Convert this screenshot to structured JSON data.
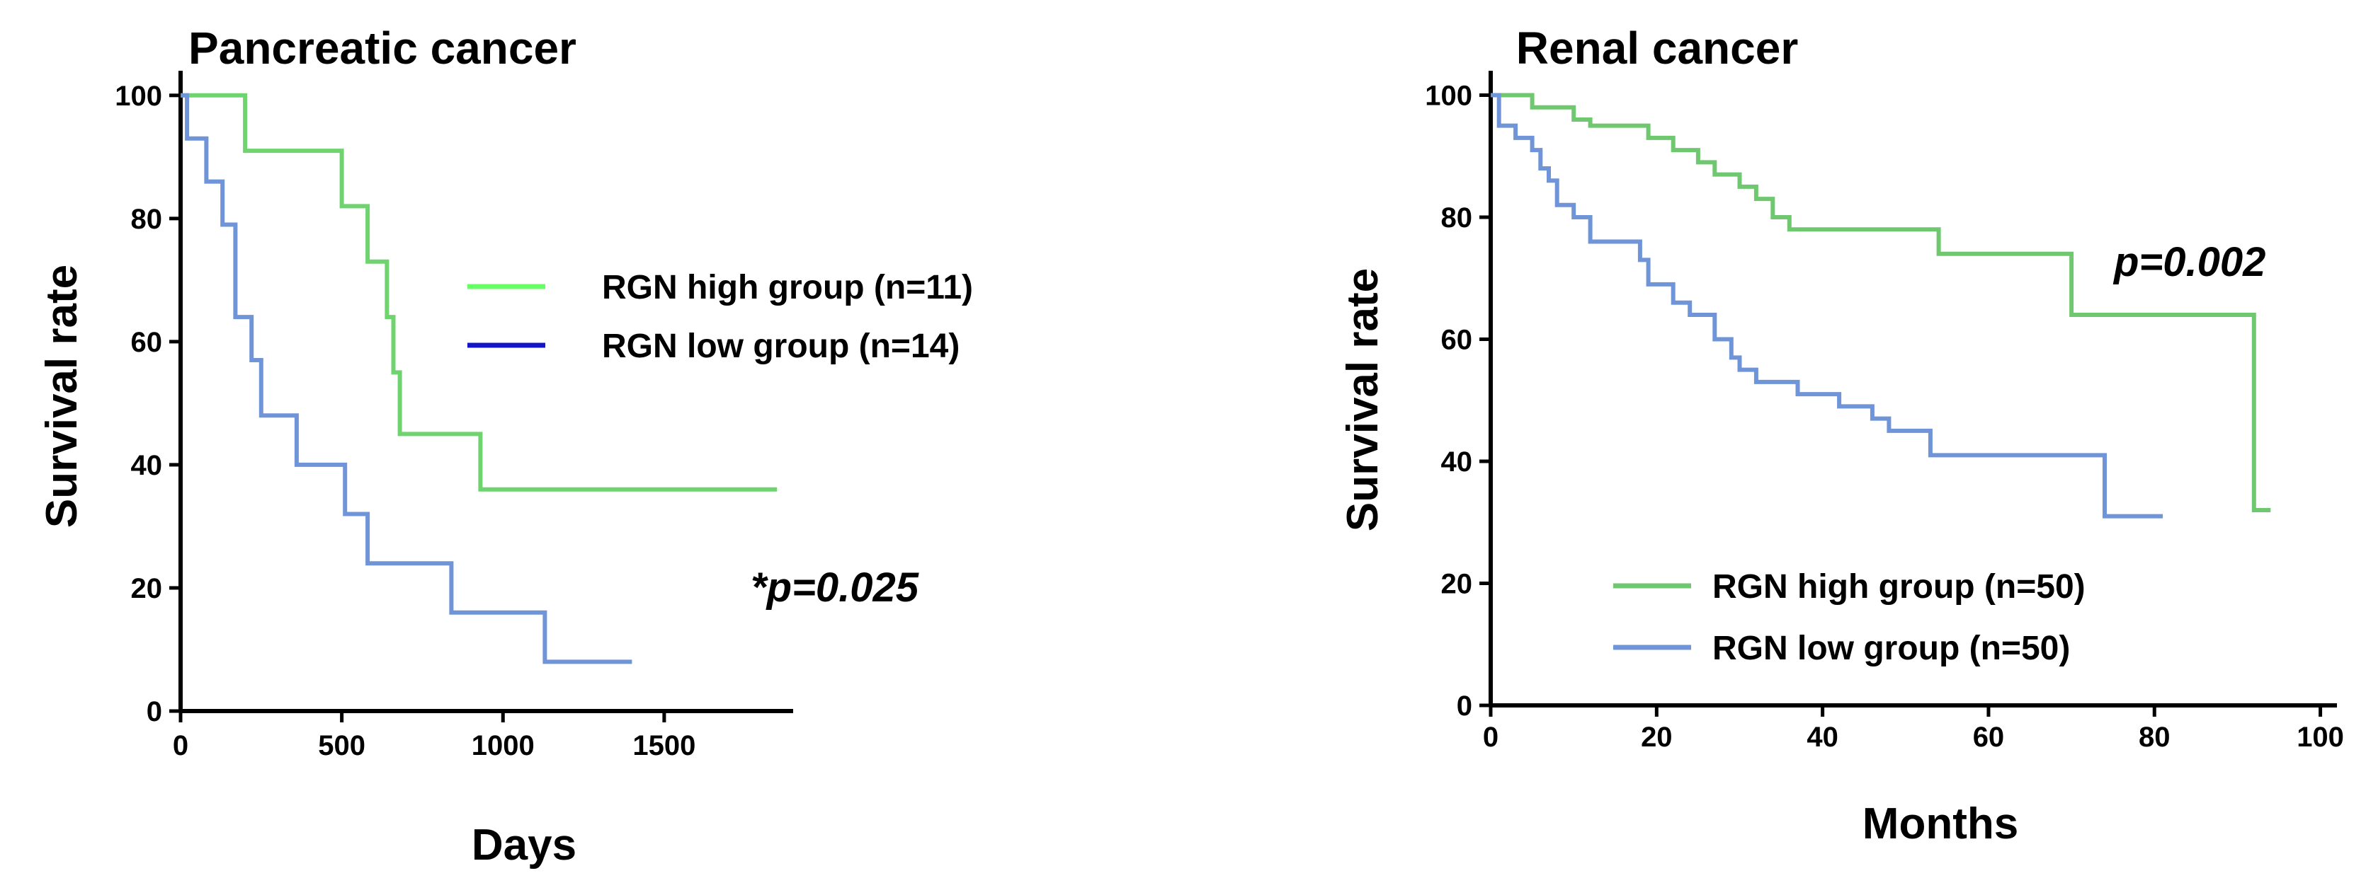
{
  "chart_data": [
    {
      "type": "line",
      "title": "Pancreatic cancer",
      "xlabel": "Days",
      "ylabel": "Survival rate",
      "xlim": [
        0,
        1900
      ],
      "ylim": [
        0,
        104
      ],
      "xticks": [
        0,
        500,
        1000,
        1500
      ],
      "yticks": [
        0,
        20,
        40,
        60,
        80,
        100
      ],
      "annotation": "*p=0.025",
      "legend_position": "center-right",
      "series": [
        {
          "name": "RGN high group (n=11)",
          "legend_color": "#66ff66",
          "color": "#6fd46f",
          "steps": [
            [
              0,
              100
            ],
            [
              200,
              100
            ],
            [
              200,
              91
            ],
            [
              500,
              91
            ],
            [
              500,
              82
            ],
            [
              580,
              82
            ],
            [
              580,
              73
            ],
            [
              640,
              73
            ],
            [
              640,
              64
            ],
            [
              660,
              64
            ],
            [
              660,
              55
            ],
            [
              680,
              55
            ],
            [
              680,
              45
            ],
            [
              930,
              45
            ],
            [
              930,
              36
            ],
            [
              1850,
              36
            ]
          ]
        },
        {
          "name": "RGN low group (n=14)",
          "legend_color": "#1515c8",
          "color": "#6f94d8",
          "steps": [
            [
              0,
              100
            ],
            [
              20,
              100
            ],
            [
              20,
              93
            ],
            [
              80,
              93
            ],
            [
              80,
              86
            ],
            [
              130,
              86
            ],
            [
              130,
              79
            ],
            [
              170,
              79
            ],
            [
              170,
              64
            ],
            [
              220,
              64
            ],
            [
              220,
              57
            ],
            [
              250,
              57
            ],
            [
              250,
              48
            ],
            [
              360,
              48
            ],
            [
              360,
              40
            ],
            [
              510,
              40
            ],
            [
              510,
              32
            ],
            [
              580,
              32
            ],
            [
              580,
              24
            ],
            [
              840,
              24
            ],
            [
              840,
              16
            ],
            [
              1130,
              16
            ],
            [
              1130,
              8
            ],
            [
              1400,
              8
            ]
          ]
        }
      ]
    },
    {
      "type": "line",
      "title": "Renal cancer",
      "xlabel": "Months",
      "ylabel": "Survival rate",
      "xlim": [
        0,
        102
      ],
      "ylim": [
        0,
        104
      ],
      "xticks": [
        0,
        20,
        40,
        60,
        80,
        100
      ],
      "yticks": [
        0,
        20,
        40,
        60,
        80,
        100
      ],
      "annotation": "p=0.002",
      "legend_position": "bottom-center",
      "series": [
        {
          "name": "RGN high group (n=50)",
          "color": "#6fc86f",
          "steps": [
            [
              0,
              100
            ],
            [
              5,
              100
            ],
            [
              5,
              98
            ],
            [
              10,
              98
            ],
            [
              10,
              96
            ],
            [
              12,
              96
            ],
            [
              12,
              95
            ],
            [
              19,
              95
            ],
            [
              19,
              93
            ],
            [
              22,
              93
            ],
            [
              22,
              91
            ],
            [
              25,
              91
            ],
            [
              25,
              89
            ],
            [
              27,
              89
            ],
            [
              27,
              87
            ],
            [
              30,
              87
            ],
            [
              30,
              85
            ],
            [
              32,
              85
            ],
            [
              32,
              83
            ],
            [
              34,
              83
            ],
            [
              34,
              80
            ],
            [
              36,
              80
            ],
            [
              36,
              78
            ],
            [
              54,
              78
            ],
            [
              54,
              74
            ],
            [
              70,
              74
            ],
            [
              70,
              64
            ],
            [
              92,
              64
            ],
            [
              92,
              32
            ],
            [
              94,
              32
            ]
          ]
        },
        {
          "name": "RGN low group (n=50)",
          "color": "#6f94d8",
          "steps": [
            [
              0,
              100
            ],
            [
              1,
              100
            ],
            [
              1,
              95
            ],
            [
              3,
              95
            ],
            [
              3,
              93
            ],
            [
              5,
              93
            ],
            [
              5,
              91
            ],
            [
              6,
              91
            ],
            [
              6,
              88
            ],
            [
              7,
              88
            ],
            [
              7,
              86
            ],
            [
              8,
              86
            ],
            [
              8,
              82
            ],
            [
              10,
              82
            ],
            [
              10,
              80
            ],
            [
              12,
              80
            ],
            [
              12,
              76
            ],
            [
              18,
              76
            ],
            [
              18,
              73
            ],
            [
              19,
              73
            ],
            [
              19,
              69
            ],
            [
              22,
              69
            ],
            [
              22,
              66
            ],
            [
              24,
              66
            ],
            [
              24,
              64
            ],
            [
              27,
              64
            ],
            [
              27,
              60
            ],
            [
              29,
              60
            ],
            [
              29,
              57
            ],
            [
              30,
              57
            ],
            [
              30,
              55
            ],
            [
              32,
              55
            ],
            [
              32,
              53
            ],
            [
              37,
              53
            ],
            [
              37,
              51
            ],
            [
              42,
              51
            ],
            [
              42,
              49
            ],
            [
              46,
              49
            ],
            [
              46,
              47
            ],
            [
              48,
              47
            ],
            [
              48,
              45
            ],
            [
              53,
              45
            ],
            [
              53,
              41
            ],
            [
              74,
              41
            ],
            [
              74,
              31
            ],
            [
              81,
              31
            ]
          ]
        }
      ]
    }
  ]
}
